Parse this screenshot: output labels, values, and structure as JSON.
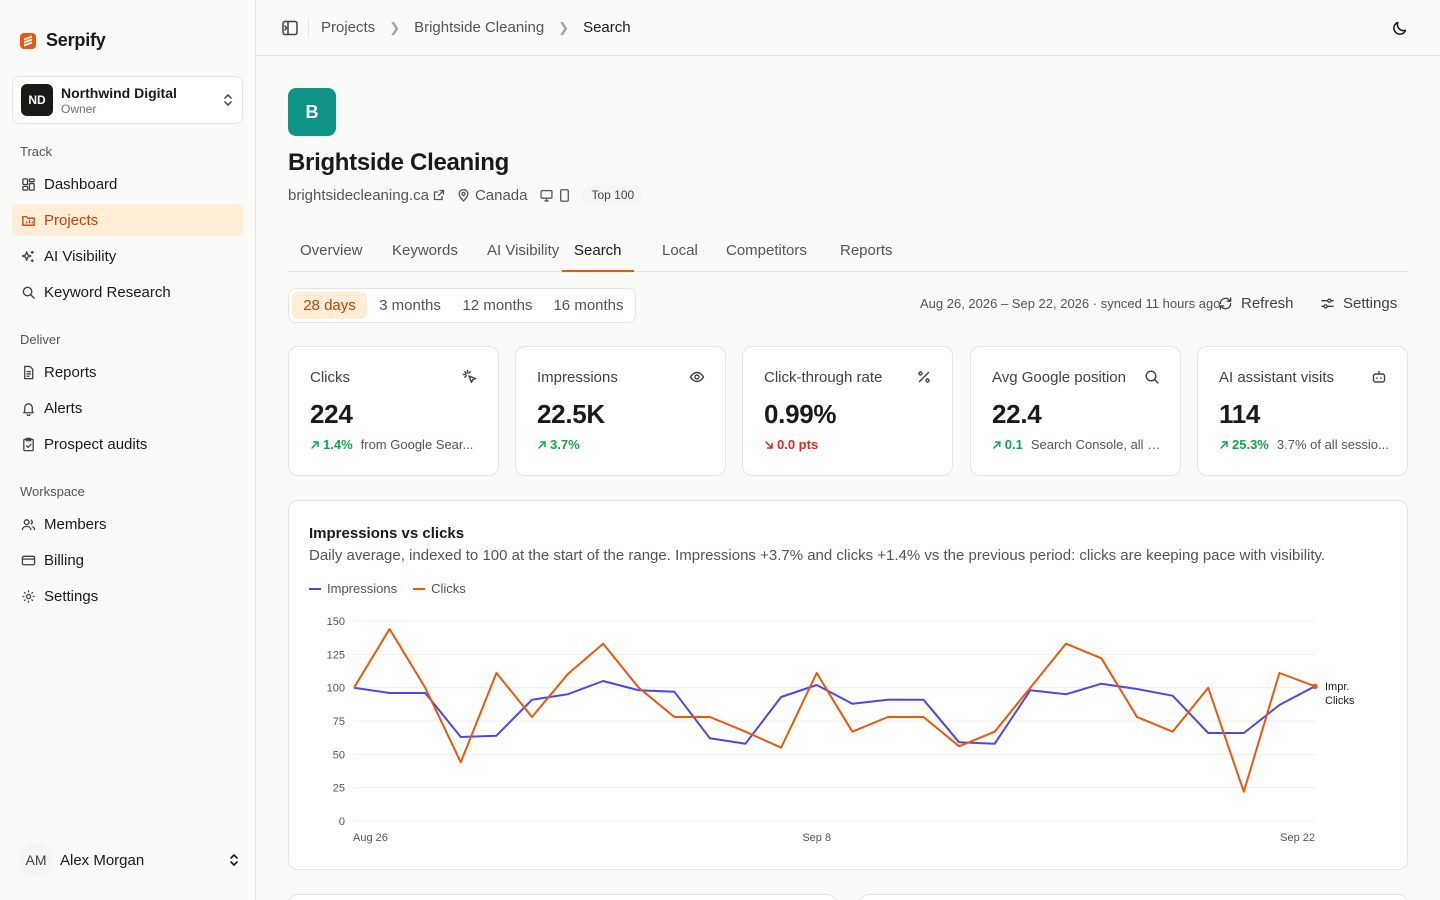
{
  "brand": {
    "name": "Serpify"
  },
  "org": {
    "initials": "ND",
    "name": "Northwind Digital",
    "role": "Owner"
  },
  "nav": {
    "track_label": "Track",
    "deliver_label": "Deliver",
    "workspace_label": "Workspace",
    "items": {
      "dashboard": "Dashboard",
      "projects": "Projects",
      "ai_visibility": "AI Visibility",
      "keyword_research": "Keyword Research",
      "reports": "Reports",
      "alerts": "Alerts",
      "prospect_audits": "Prospect audits",
      "members": "Members",
      "billing": "Billing",
      "settings": "Settings"
    }
  },
  "user": {
    "initials": "AM",
    "name": "Alex Morgan"
  },
  "breadcrumb": [
    "Projects",
    "Brightside Cleaning",
    "Search"
  ],
  "project": {
    "initial": "B",
    "name": "Brightside Cleaning",
    "domain": "brightsidecleaning.ca",
    "country": "Canada",
    "badge": "Top 100"
  },
  "tabs": [
    "Overview",
    "Keywords",
    "AI Visibility",
    "Search",
    "Local",
    "Competitors",
    "Reports"
  ],
  "active_tab": "Search",
  "ranges": [
    "28 days",
    "3 months",
    "12 months",
    "16 months"
  ],
  "active_range": "28 days",
  "sync_text": "Aug 26, 2026 – Sep 22, 2026 · synced 11 hours ago",
  "actions": {
    "refresh": "Refresh",
    "settings": "Settings"
  },
  "kpis": [
    {
      "label": "Clicks",
      "icon": "cursor-click-icon",
      "value": "224",
      "delta": "1.4%",
      "direction": "up",
      "note": "from Google Sear..."
    },
    {
      "label": "Impressions",
      "icon": "eye-icon",
      "value": "22.5K",
      "delta": "3.7%",
      "direction": "up",
      "note": ""
    },
    {
      "label": "Click-through rate",
      "icon": "percent-icon",
      "value": "0.99%",
      "delta": "0.0 pts",
      "direction": "down",
      "note": ""
    },
    {
      "label": "Avg Google position",
      "icon": "search-icon",
      "value": "22.4",
      "delta": "0.1",
      "direction": "up",
      "note": "Search Console, all q..."
    },
    {
      "label": "AI assistant visits",
      "icon": "bot-icon",
      "value": "114",
      "delta": "25.3%",
      "direction": "up",
      "note": "3.7% of all sessio..."
    }
  ],
  "chart": {
    "title": "Impressions vs clicks",
    "subtitle": "Daily average, indexed to 100 at the start of the range. Impressions +3.7% and clicks +1.4% vs the previous period: clicks are keeping pace with visibility.",
    "end_labels": [
      "Impr.",
      "Clicks"
    ]
  },
  "chart_data": {
    "type": "line",
    "x_tick_labels": [
      "Aug 26",
      "Sep 8",
      "Sep 22"
    ],
    "y_ticks": [
      0,
      25,
      50,
      75,
      100,
      125,
      150
    ],
    "ylim": [
      0,
      150
    ],
    "grid": true,
    "legend": "top-left",
    "series": [
      {
        "name": "Impressions",
        "color": "#4f46e5",
        "values": [
          100,
          96,
          96,
          63,
          64,
          91,
          95,
          105,
          98,
          97,
          62,
          58,
          93,
          102,
          88,
          91,
          91,
          59,
          58,
          98,
          95,
          103,
          99,
          94,
          66,
          66,
          87,
          101
        ]
      },
      {
        "name": "Clicks",
        "color": "#ea580c",
        "values": [
          100,
          144,
          100,
          44,
          111,
          78,
          110,
          133,
          100,
          78,
          78,
          67,
          55,
          111,
          67,
          78,
          78,
          56,
          67,
          100,
          133,
          122,
          78,
          67,
          100,
          22,
          111,
          101
        ]
      }
    ]
  }
}
